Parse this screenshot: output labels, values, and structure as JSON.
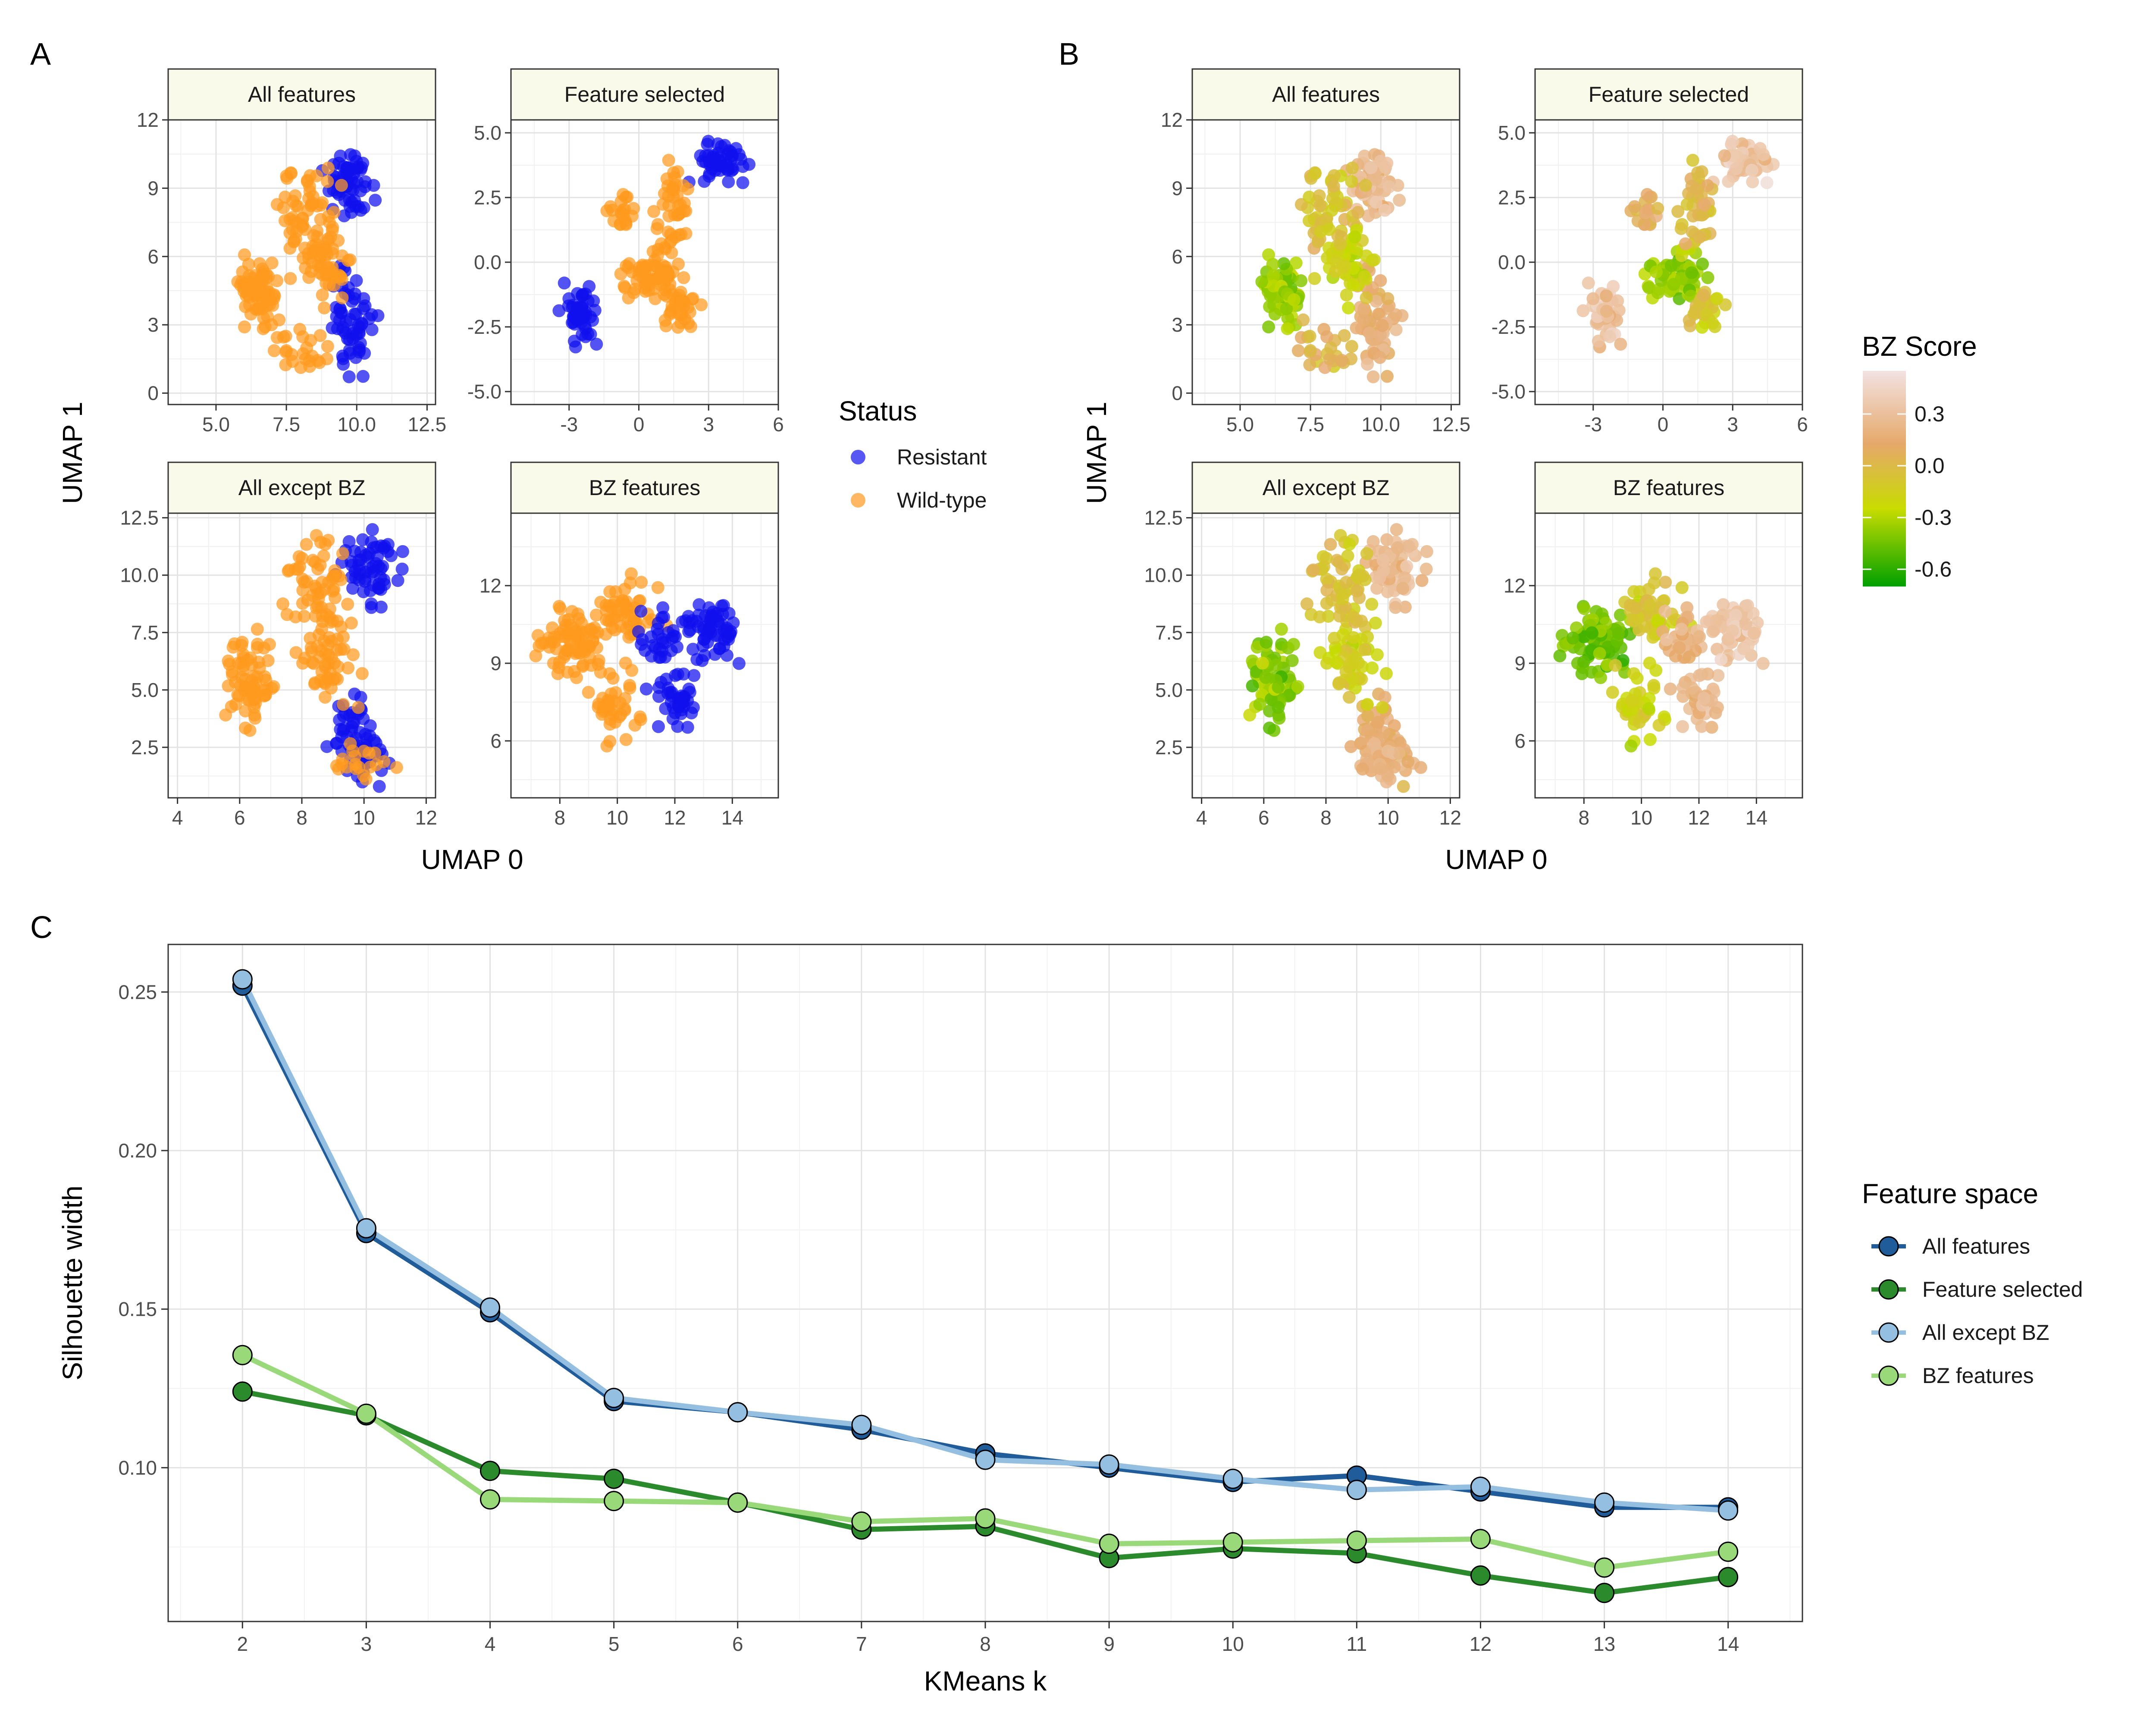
{
  "panel_labels": {
    "a": "A",
    "b": "B",
    "c": "C"
  },
  "colors": {
    "resistant": "#1010ee",
    "wildtype": "#ff9a1e",
    "bz_scale": [
      "#00a000",
      "#c8dc00",
      "#e6a86a",
      "#f2e2e2"
    ]
  },
  "umap_panels": {
    "facet_titles": [
      "All features",
      "Feature selected",
      "All except BZ",
      "BZ features"
    ],
    "xlabel": "UMAP 0",
    "ylabel": "UMAP 1",
    "status_legend": {
      "title": "Status",
      "items": [
        "Resistant",
        "Wild-type"
      ]
    },
    "bz_legend": {
      "title": "BZ Score",
      "ticks": [
        "0.3",
        "0.0",
        "-0.3",
        "-0.6"
      ],
      "tick_values": [
        0.3,
        0.0,
        -0.3,
        -0.6
      ],
      "range": [
        -0.7,
        0.55
      ]
    },
    "facets": [
      {
        "x_ticks": [
          "5.0",
          "7.5",
          "10.0",
          "12.5"
        ],
        "x_tick_values": [
          5.0,
          7.5,
          10.0,
          12.5
        ],
        "y_ticks": [
          "0",
          "3",
          "6",
          "9",
          "12"
        ],
        "y_tick_values": [
          0,
          3,
          6,
          9,
          12
        ],
        "xlim": [
          3.3,
          12.8
        ],
        "ylim": [
          -0.5,
          12
        ]
      },
      {
        "x_ticks": [
          "-3",
          "0",
          "3",
          "6"
        ],
        "x_tick_values": [
          -3,
          0,
          3,
          6
        ],
        "y_ticks": [
          "5.0",
          "2.5",
          "0.0",
          "-2.5",
          "-5.0"
        ],
        "y_tick_values": [
          5.0,
          2.5,
          0.0,
          -2.5,
          -5.0
        ],
        "xlim": [
          -5.5,
          6.0
        ],
        "ylim": [
          -5.5,
          5.5
        ]
      },
      {
        "x_ticks": [
          "4",
          "6",
          "8",
          "10",
          "12"
        ],
        "x_tick_values": [
          4,
          6,
          8,
          10,
          12
        ],
        "y_ticks": [
          "12.5",
          "10.0",
          "7.5",
          "5.0",
          "2.5"
        ],
        "y_tick_values": [
          12.5,
          10.0,
          7.5,
          5.0,
          2.5
        ],
        "xlim": [
          3.7,
          12.3
        ],
        "ylim": [
          0.3,
          12.7
        ]
      },
      {
        "x_ticks": [
          "8",
          "10",
          "12",
          "14"
        ],
        "x_tick_values": [
          8,
          10,
          12,
          14
        ],
        "y_ticks": [
          "12",
          "9",
          "6"
        ],
        "y_tick_values": [
          12,
          9,
          6
        ],
        "xlim": [
          6.3,
          15.6
        ],
        "ylim": [
          3.8,
          14.8
        ]
      }
    ]
  },
  "chart_data": {
    "type": "line",
    "xlabel": "KMeans k",
    "ylabel": "Silhouette width",
    "x": [
      2,
      3,
      4,
      5,
      6,
      7,
      8,
      9,
      10,
      11,
      12,
      13,
      14
    ],
    "xlim": [
      1.4,
      14.6
    ],
    "ylim": [
      0.0515,
      0.265
    ],
    "y_ticks": [
      0.1,
      0.15,
      0.2,
      0.25
    ],
    "y_tick_labels": [
      "0.10",
      "0.15",
      "0.20",
      "0.25"
    ],
    "legend": {
      "title": "Feature space",
      "position": "right"
    },
    "grid": true,
    "series": [
      {
        "name": "All features",
        "color": "#1f5c99",
        "values": [
          0.252,
          0.174,
          0.149,
          0.121,
          0.1175,
          0.112,
          0.1045,
          0.1,
          0.0955,
          0.0975,
          0.0925,
          0.0875,
          0.0875
        ]
      },
      {
        "name": "Feature selected",
        "color": "#2b8a2b",
        "values": [
          0.124,
          0.1165,
          0.099,
          0.0965,
          0.089,
          0.0805,
          0.0815,
          0.0715,
          0.0745,
          0.073,
          0.066,
          0.0605,
          0.0655
        ]
      },
      {
        "name": "All except BZ",
        "color": "#95bfe0",
        "values": [
          0.254,
          0.1755,
          0.1505,
          0.122,
          0.1175,
          0.1135,
          0.1025,
          0.101,
          0.0965,
          0.093,
          0.094,
          0.089,
          0.0865
        ]
      },
      {
        "name": "BZ features",
        "color": "#9ad97a",
        "values": [
          0.1355,
          0.117,
          0.09,
          0.0895,
          0.089,
          0.083,
          0.084,
          0.076,
          0.0765,
          0.077,
          0.0775,
          0.0685,
          0.0735
        ]
      }
    ]
  }
}
